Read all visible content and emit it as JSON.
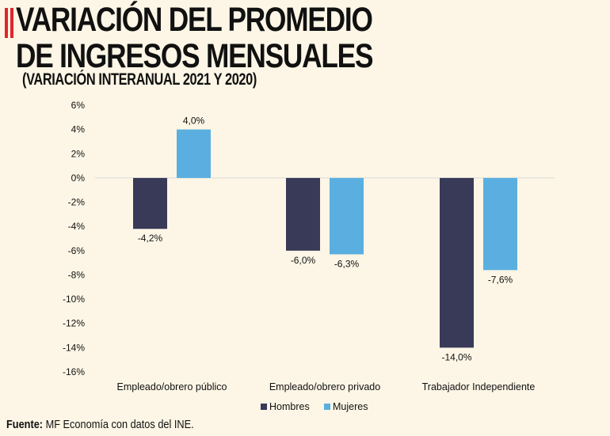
{
  "header": {
    "title_line1": "VARIACIÓN DEL PROMEDIO",
    "title_line2": "DE INGRESOS MENSUALES",
    "subtitle": "(VARIACIÓN INTERANUAL 2021 Y 2020)",
    "accent_color": "#e0262c"
  },
  "chart_data": {
    "type": "bar",
    "categories": [
      "Empleado/obrero público",
      "Empleado/obrero privado",
      "Trabajador Independiente"
    ],
    "series": [
      {
        "name": "Hombres",
        "values": [
          -4.2,
          -6.0,
          -14.0
        ],
        "labels": [
          "-4,2%",
          "-6,0%",
          "-14,0%"
        ],
        "color": "#383a58"
      },
      {
        "name": "Mujeres",
        "values": [
          4.0,
          -6.3,
          -7.6
        ],
        "labels": [
          "4,0%",
          "-6,3%",
          "-7,6%"
        ],
        "color": "#5aafe0"
      }
    ],
    "ylim": [
      -16,
      6
    ],
    "yticks": [
      6,
      4,
      2,
      0,
      -2,
      -4,
      -6,
      -8,
      -10,
      -12,
      -14,
      -16
    ],
    "ytick_labels": [
      "6%",
      "4%",
      "2%",
      "0%",
      "-2%",
      "-4%",
      "-6%",
      "-8%",
      "-10%",
      "-12%",
      "-14%",
      "-16%"
    ],
    "grid": false,
    "legend_position": "bottom"
  },
  "footer": {
    "source_label": "Fuente:",
    "source_text": " MF Economía con datos del INE."
  }
}
